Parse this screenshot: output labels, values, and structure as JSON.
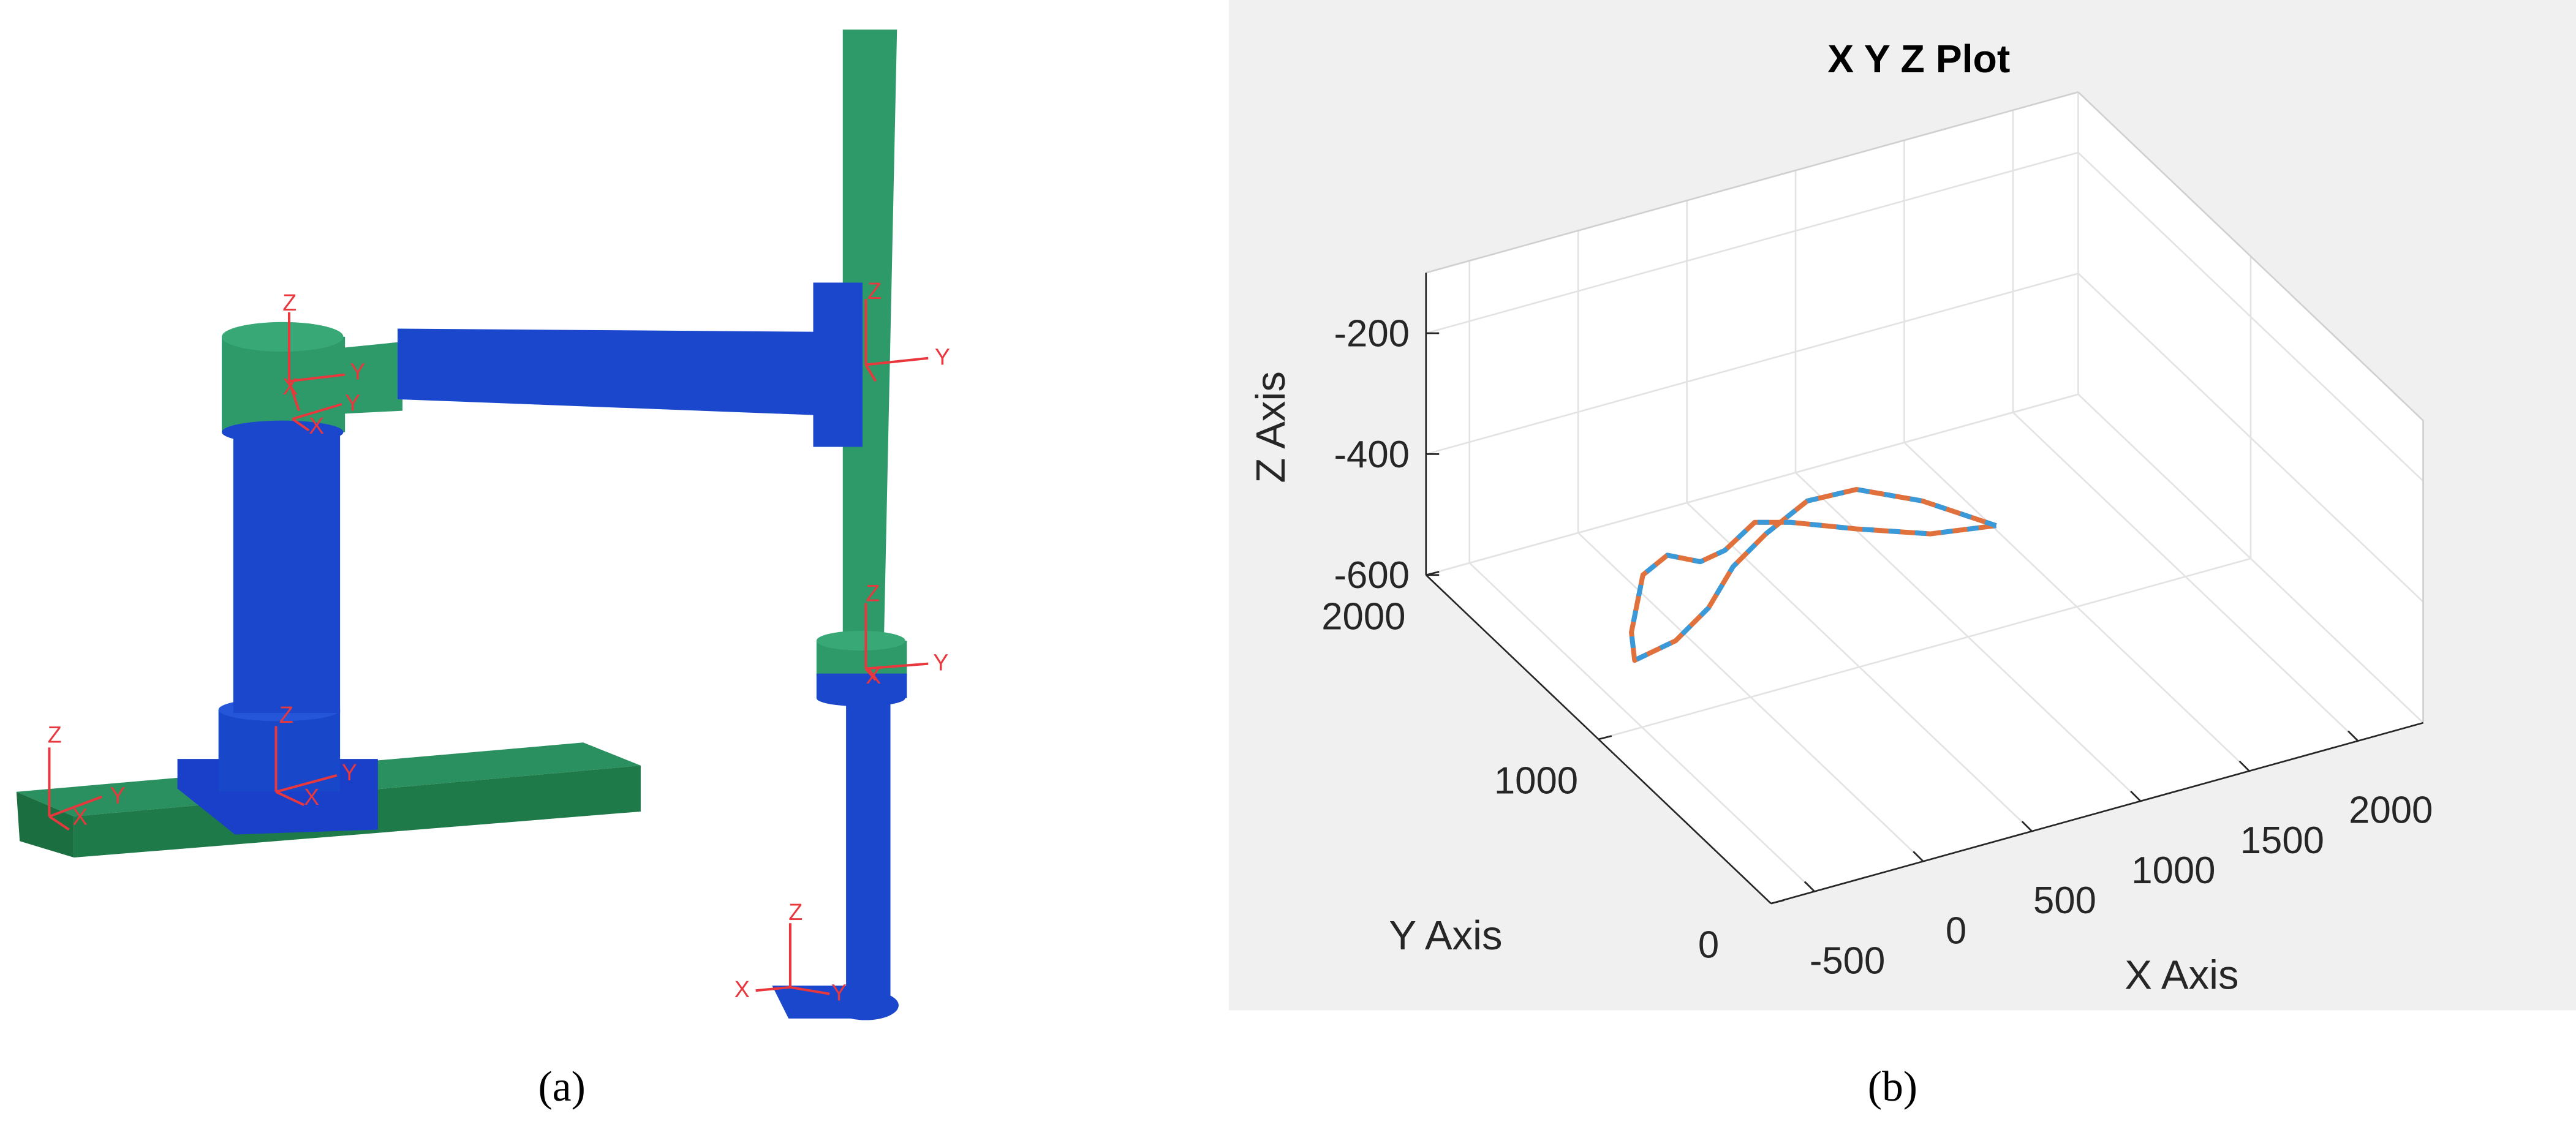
{
  "panel_labels": [
    "(a)",
    "(b)"
  ],
  "frames": [
    [
      "Z",
      "Y",
      "X"
    ],
    [
      "Z",
      "X",
      "Y"
    ],
    [
      "Z",
      "Y",
      "X",
      "Y",
      "X"
    ],
    [
      "Z",
      "Y"
    ],
    [
      "Z",
      "Y",
      "X"
    ],
    [
      "Z",
      "X",
      "Y"
    ]
  ],
  "chart_data": {
    "type": "line3d",
    "title": "X Y Z Plot",
    "xlabel": "X Axis",
    "ylabel": "Y Axis",
    "zlabel": "Z Axis",
    "xlim": [
      -700,
      2300
    ],
    "ylim": [
      0,
      2000
    ],
    "zlim": [
      -600,
      -100
    ],
    "xticks": [
      -500,
      0,
      500,
      1000,
      1500,
      2000
    ],
    "yticks": [
      0,
      1000,
      2000
    ],
    "zticks": [
      -600,
      -400,
      -200
    ],
    "grid": true,
    "series": [
      {
        "color": "#e0703c",
        "dash": false,
        "x": [
          1290,
          1119,
          928,
          709,
          439,
          199,
          -42,
          -282,
          -502,
          -409,
          -153,
          8,
          101,
          232,
          442,
          570,
          780,
          1025,
          1290
        ],
        "y": [
          1203,
          1416,
          1556,
          1566,
          1465,
          1353,
          1191,
          1079,
          1040,
          1176,
          1432,
          1493,
          1419,
          1441,
          1534,
          1487,
          1370,
          1250,
          1203
        ],
        "z": [
          -500,
          -500,
          -500,
          -500,
          -500,
          -500,
          -500,
          -500,
          -500,
          -500,
          -500,
          -500,
          -500,
          -500,
          -500,
          -500,
          -500,
          -500,
          -500
        ]
      },
      {
        "color": "#3a9ad9",
        "dash": true,
        "x": [
          1290,
          1119,
          928,
          709,
          439,
          199,
          -42,
          -282,
          -502,
          -409,
          -153,
          8,
          101,
          232,
          442,
          570,
          780,
          1025,
          1290
        ],
        "y": [
          1203,
          1416,
          1556,
          1566,
          1465,
          1353,
          1191,
          1079,
          1040,
          1176,
          1432,
          1493,
          1419,
          1441,
          1534,
          1487,
          1370,
          1250,
          1203
        ],
        "z": [
          -500,
          -500,
          -500,
          -500,
          -500,
          -500,
          -500,
          -500,
          -500,
          -500,
          -500,
          -500,
          -500,
          -500,
          -500,
          -500,
          -500,
          -500,
          -500
        ]
      }
    ]
  }
}
